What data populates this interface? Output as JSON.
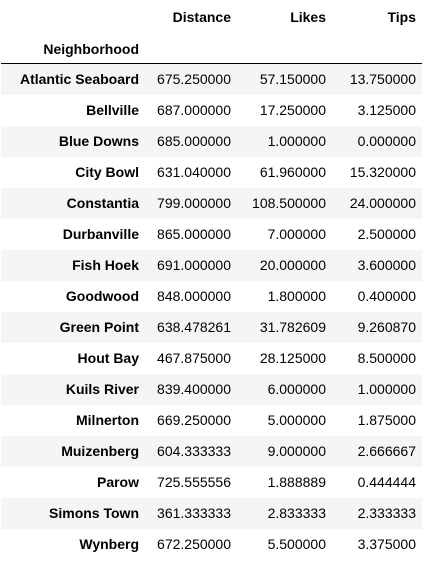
{
  "table": {
    "columns": [
      "Distance",
      "Likes",
      "Tips"
    ],
    "index_name": "Neighborhood",
    "rows": [
      {
        "name": "Atlantic Seaboard",
        "distance": "675.250000",
        "likes": "57.150000",
        "tips": "13.750000"
      },
      {
        "name": "Bellville",
        "distance": "687.000000",
        "likes": "17.250000",
        "tips": "3.125000"
      },
      {
        "name": "Blue Downs",
        "distance": "685.000000",
        "likes": "1.000000",
        "tips": "0.000000"
      },
      {
        "name": "City Bowl",
        "distance": "631.040000",
        "likes": "61.960000",
        "tips": "15.320000"
      },
      {
        "name": "Constantia",
        "distance": "799.000000",
        "likes": "108.500000",
        "tips": "24.000000"
      },
      {
        "name": "Durbanville",
        "distance": "865.000000",
        "likes": "7.000000",
        "tips": "2.500000"
      },
      {
        "name": "Fish Hoek",
        "distance": "691.000000",
        "likes": "20.000000",
        "tips": "3.600000"
      },
      {
        "name": "Goodwood",
        "distance": "848.000000",
        "likes": "1.800000",
        "tips": "0.400000"
      },
      {
        "name": "Green Point",
        "distance": "638.478261",
        "likes": "31.782609",
        "tips": "9.260870"
      },
      {
        "name": "Hout Bay",
        "distance": "467.875000",
        "likes": "28.125000",
        "tips": "8.500000"
      },
      {
        "name": "Kuils River",
        "distance": "839.400000",
        "likes": "6.000000",
        "tips": "1.000000"
      },
      {
        "name": "Milnerton",
        "distance": "669.250000",
        "likes": "5.000000",
        "tips": "1.875000"
      },
      {
        "name": "Muizenberg",
        "distance": "604.333333",
        "likes": "9.000000",
        "tips": "2.666667"
      },
      {
        "name": "Parow",
        "distance": "725.555556",
        "likes": "1.888889",
        "tips": "0.444444"
      },
      {
        "name": "Simons Town",
        "distance": "361.333333",
        "likes": "2.833333",
        "tips": "2.333333"
      },
      {
        "name": "Wynberg",
        "distance": "672.250000",
        "likes": "5.500000",
        "tips": "3.375000"
      }
    ]
  }
}
